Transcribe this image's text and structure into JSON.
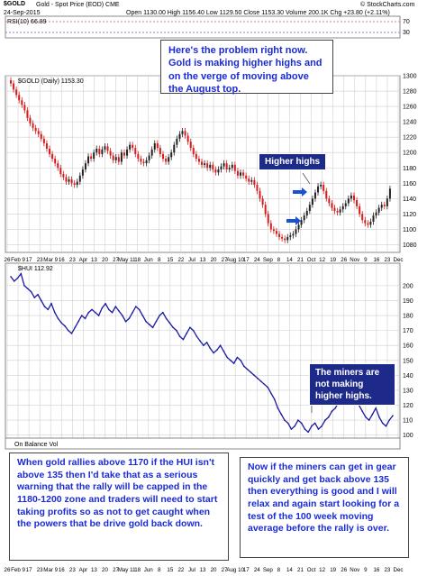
{
  "header": {
    "symbol": "$GOLD",
    "description": "Gold - Spot Price (EOD)  CME",
    "date": "24-Sep-2015",
    "ohlc": "Open 1130.00  High 1156.40  Low 1129.50  Close 1153.30  Volume 200.1K  Chg +23.80 (+2.11%)",
    "brand": "© StockCharts.com"
  },
  "rsi": {
    "label": "RSI(10) 66.89",
    "levels": [
      "70",
      "30"
    ]
  },
  "gold_panel": {
    "legend": "$GOLD (Daily) 1153.30"
  },
  "hui_panel": {
    "legend": "$HUI 112.92"
  },
  "obv": {
    "label": "On Balance Vol"
  },
  "annotations": {
    "top_box": "Here's the problem right now. Gold is making higher highs and on the verge of moving above the August top.",
    "higher_highs": "Higher highs",
    "miners_not": "The miners are not making higher highs.",
    "left_box": "When gold rallies above 1170 if the HUI isn't above 135 then I'd take that as a serious warning that the rally will be capped in the 1180-1200 zone and traders will need to start taking profits so as not to get caught when the powers that be drive gold back down.",
    "right_box": "Now if the miners can get in gear quickly and get back above 135 then everything is good and I will relax and again start looking for a test of the 100 week moving average before the rally is over."
  },
  "colors": {
    "up": "#222222",
    "down": "#d81b1b",
    "hui": "#1a1aa0",
    "accent": "#1e2a8a",
    "grid": "#cfcfcf",
    "annotation_text": "#1a2bd6"
  },
  "chart_data": [
    {
      "type": "candlestick",
      "title": "$GOLD (Daily) 1153.30",
      "ylim": [
        1070,
        1300
      ],
      "yticks": [
        1080,
        1100,
        1120,
        1140,
        1160,
        1180,
        1200,
        1220,
        1240,
        1260,
        1280,
        1300
      ],
      "x_ticks": [
        "26",
        "Feb 9",
        "17",
        "23",
        "Mar 9",
        "16",
        "23",
        "Apr",
        "13",
        "20",
        "27",
        "May 11",
        "18",
        "Jun",
        "8",
        "15",
        "22",
        "Jul",
        "13",
        "20",
        "27",
        "Aug 10",
        "17",
        "24",
        "Sep",
        "8",
        "14",
        "21",
        "Oct",
        "12",
        "19",
        "26",
        "Nov",
        "9",
        "16",
        "23",
        "Dec"
      ],
      "closes": [
        1290,
        1282,
        1275,
        1268,
        1262,
        1255,
        1245,
        1238,
        1232,
        1228,
        1224,
        1218,
        1212,
        1205,
        1198,
        1192,
        1186,
        1180,
        1172,
        1168,
        1162,
        1165,
        1160,
        1158,
        1162,
        1170,
        1178,
        1186,
        1195,
        1192,
        1200,
        1205,
        1198,
        1204,
        1208,
        1202,
        1196,
        1190,
        1194,
        1188,
        1200,
        1196,
        1204,
        1210,
        1206,
        1198,
        1192,
        1188,
        1186,
        1190,
        1196,
        1204,
        1212,
        1206,
        1198,
        1192,
        1188,
        1194,
        1200,
        1210,
        1218,
        1224,
        1228,
        1222,
        1214,
        1206,
        1198,
        1192,
        1188,
        1184,
        1186,
        1180,
        1184,
        1178,
        1174,
        1178,
        1182,
        1186,
        1178,
        1180,
        1184,
        1176,
        1170,
        1174,
        1170,
        1166,
        1162,
        1164,
        1158,
        1150,
        1140,
        1132,
        1120,
        1108,
        1100,
        1098,
        1094,
        1090,
        1088,
        1086,
        1090,
        1092,
        1094,
        1100,
        1106,
        1112,
        1118,
        1124,
        1132,
        1140,
        1148,
        1156,
        1158,
        1150,
        1140,
        1134,
        1128,
        1124,
        1122,
        1126,
        1130,
        1134,
        1140,
        1144,
        1138,
        1130,
        1120,
        1112,
        1108,
        1106,
        1110,
        1118,
        1122,
        1128,
        1132,
        1130,
        1140,
        1153
      ]
    },
    {
      "type": "line",
      "title": "$HUI 112.92",
      "ylim": [
        98,
        215
      ],
      "yticks": [
        100,
        110,
        120,
        130,
        140,
        150,
        160,
        170,
        180,
        190,
        200
      ],
      "x_ticks": [
        "26",
        "Feb 9",
        "17",
        "23",
        "Mar 9",
        "16",
        "23",
        "Apr",
        "13",
        "20",
        "27",
        "May 11",
        "18",
        "Jun",
        "8",
        "15",
        "22",
        "Jul",
        "13",
        "20",
        "27",
        "Aug 10",
        "17",
        "24",
        "Sep",
        "8",
        "14",
        "21",
        "Oct",
        "12",
        "19",
        "26",
        "Nov",
        "9",
        "16",
        "23",
        "Dec"
      ],
      "values": [
        206,
        203,
        205,
        208,
        200,
        198,
        196,
        192,
        194,
        190,
        186,
        184,
        188,
        182,
        178,
        175,
        173,
        170,
        168,
        172,
        176,
        180,
        178,
        182,
        184,
        182,
        180,
        185,
        188,
        184,
        182,
        186,
        183,
        180,
        176,
        178,
        182,
        186,
        184,
        180,
        176,
        174,
        172,
        176,
        180,
        182,
        178,
        175,
        172,
        170,
        166,
        164,
        168,
        172,
        170,
        166,
        163,
        160,
        162,
        158,
        155,
        157,
        160,
        156,
        152,
        150,
        148,
        152,
        150,
        146,
        144,
        142,
        140,
        138,
        136,
        134,
        132,
        128,
        124,
        118,
        114,
        110,
        108,
        104,
        106,
        110,
        108,
        104,
        102,
        106,
        108,
        104,
        106,
        110,
        112,
        116,
        118,
        122,
        126,
        130,
        134,
        128,
        124,
        120,
        116,
        112,
        110,
        114,
        118,
        112,
        108,
        106,
        110,
        113
      ]
    }
  ]
}
